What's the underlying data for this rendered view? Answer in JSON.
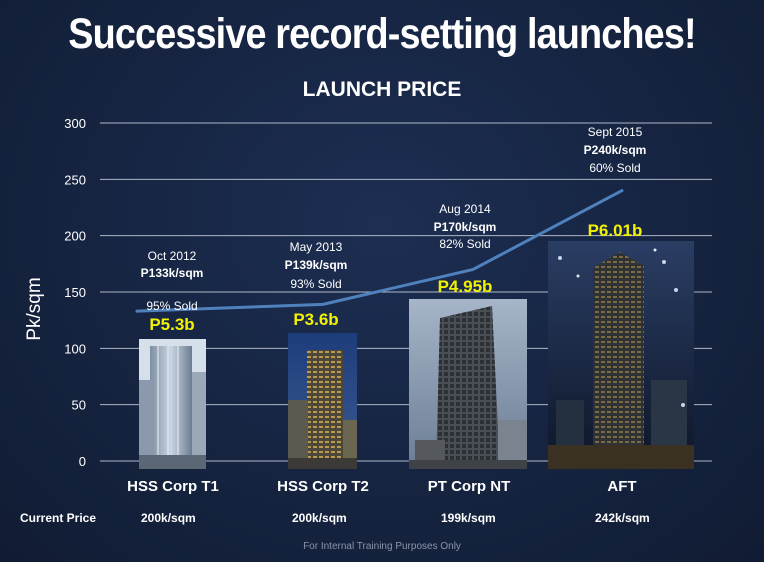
{
  "title": "Successive record-setting launches!",
  "chart_data": {
    "type": "line",
    "title": "LAUNCH PRICE",
    "ylabel": "Pk/sqm",
    "ylim": [
      0,
      300
    ],
    "yticks": [
      0,
      50,
      100,
      150,
      200,
      250,
      300
    ],
    "grid": true,
    "categories": [
      "HSS Corp T1",
      "HSS Corp T2",
      "PT Corp NT",
      "AFT"
    ],
    "series": [
      {
        "values": [
          133,
          139,
          170,
          240
        ]
      }
    ],
    "point_labels": [
      {
        "date": "Oct 2012",
        "price": "P133k/sqm",
        "sold": "95% Sold",
        "total": "P5.3b"
      },
      {
        "date": "May 2013",
        "price": "P139k/sqm",
        "sold": "93% Sold",
        "total": "P3.6b"
      },
      {
        "date": "Aug 2014",
        "price": "P170k/sqm",
        "sold": "82% Sold",
        "total": "P4.95b"
      },
      {
        "date": "Sept 2015",
        "price": "P240k/sqm",
        "sold": "60% Sold",
        "total": "P6.01b"
      }
    ],
    "line_color": "#4f81bd"
  },
  "current_price": {
    "label": "Current Price",
    "values": [
      "200k/sqm",
      "200k/sqm",
      "199k/sqm",
      "242k/sqm"
    ]
  },
  "footer": "For Internal Training Purposes Only",
  "colors": {
    "background": "#15233f",
    "highlight": "#f2f200",
    "line": "#4f81bd"
  }
}
